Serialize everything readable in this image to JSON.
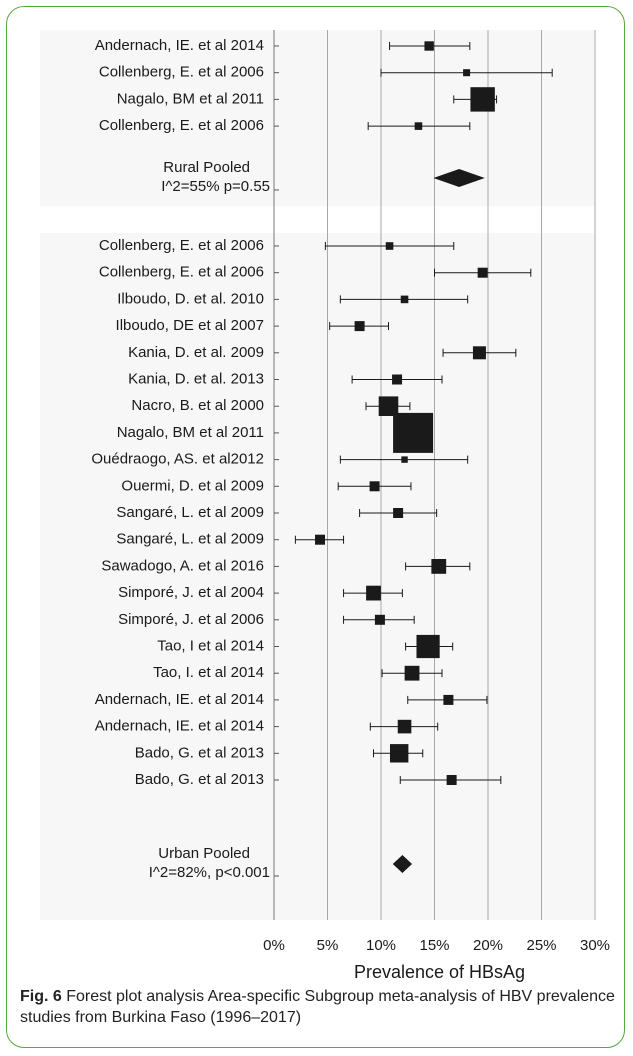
{
  "chart_data": {
    "type": "forest",
    "xlabel": "Prevalence of HBsAg",
    "xlim": [
      0,
      30
    ],
    "xticks": [
      "0%",
      "5%",
      "10%",
      "15%",
      "20%",
      "25%",
      "30%"
    ],
    "grid": "vertical",
    "colors": {
      "marker": "#1a1a1a",
      "panel": "#f7f7f7",
      "grid": "#a8a8a8",
      "frame": "#58a93b"
    },
    "groups": [
      {
        "studies": [
          {
            "label": "Andernach, IE. et al 2014",
            "estimate": 14.5,
            "lower": 10.8,
            "upper": 18.3,
            "weight": 0.45
          },
          {
            "label": "Collenberg, E. et al 2006",
            "estimate": 18.0,
            "lower": 10.0,
            "upper": 26.0,
            "weight": 0.25
          },
          {
            "label": "Nagalo, BM et al 2011",
            "estimate": 19.5,
            "lower": 16.8,
            "upper": 20.8,
            "weight": 1.7
          },
          {
            "label": "Collenberg, E. et al 2006",
            "estimate": 13.5,
            "lower": 8.8,
            "upper": 18.3,
            "weight": 0.3
          }
        ],
        "pooled": {
          "label": "Rural Pooled",
          "stats": "I^2=55% p=0.55",
          "estimate": 17.3,
          "lower": 14.9,
          "upper": 19.7
        }
      },
      {
        "studies": [
          {
            "label": "Collenberg, E. et al 2006",
            "estimate": 10.8,
            "lower": 4.8,
            "upper": 16.8,
            "weight": 0.3
          },
          {
            "label": "Collenberg, E. et al 2006",
            "estimate": 19.5,
            "lower": 15.0,
            "upper": 24.0,
            "weight": 0.5
          },
          {
            "label": "Ilboudo, D. et al. 2010",
            "estimate": 12.2,
            "lower": 6.2,
            "upper": 18.1,
            "weight": 0.3
          },
          {
            "label": "Ilboudo, DE et al 2007",
            "estimate": 8.0,
            "lower": 5.2,
            "upper": 10.7,
            "weight": 0.5
          },
          {
            "label": "Kania, D. et al. 2009",
            "estimate": 19.2,
            "lower": 15.8,
            "upper": 22.6,
            "weight": 0.75
          },
          {
            "label": "Kania, D. et al. 2013",
            "estimate": 11.5,
            "lower": 7.3,
            "upper": 15.7,
            "weight": 0.5
          },
          {
            "label": "Nacro, B. et al 2000",
            "estimate": 10.7,
            "lower": 8.6,
            "upper": 12.7,
            "weight": 1.3
          },
          {
            "label": "Nagalo, BM et al 2011",
            "estimate": 13.0,
            "lower": 11.8,
            "upper": 14.4,
            "weight": 3.0
          },
          {
            "label": "Ouédraogo, AS. et al2012",
            "estimate": 12.2,
            "lower": 6.2,
            "upper": 18.1,
            "weight": 0.2
          },
          {
            "label": "Ouermi, D. et al 2009",
            "estimate": 9.4,
            "lower": 6.0,
            "upper": 12.8,
            "weight": 0.5
          },
          {
            "label": "Sangaré, L. et al 2009",
            "estimate": 11.6,
            "lower": 8.0,
            "upper": 15.2,
            "weight": 0.5
          },
          {
            "label": "Sangaré, L. et al 2009",
            "estimate": 4.3,
            "lower": 2.0,
            "upper": 6.5,
            "weight": 0.5
          },
          {
            "label": "Sawadogo, A. et al 2016",
            "estimate": 15.4,
            "lower": 12.3,
            "upper": 18.3,
            "weight": 0.9
          },
          {
            "label": "Simporé, J. et al 2004",
            "estimate": 9.3,
            "lower": 6.5,
            "upper": 12.0,
            "weight": 0.9
          },
          {
            "label": "Simporé, J. et al 2006",
            "estimate": 9.9,
            "lower": 6.5,
            "upper": 13.1,
            "weight": 0.5
          },
          {
            "label": "Tao, I et al 2014",
            "estimate": 14.4,
            "lower": 12.3,
            "upper": 16.7,
            "weight": 1.6
          },
          {
            "label": "Tao, I. et al 2014",
            "estimate": 12.9,
            "lower": 10.1,
            "upper": 15.7,
            "weight": 0.9
          },
          {
            "label": "Andernach, IE. et al 2014",
            "estimate": 16.3,
            "lower": 12.5,
            "upper": 19.9,
            "weight": 0.5
          },
          {
            "label": "Andernach, IE. et al 2014",
            "estimate": 12.2,
            "lower": 9.0,
            "upper": 15.3,
            "weight": 0.8
          },
          {
            "label": "Bado, G. et al 2013",
            "estimate": 11.7,
            "lower": 9.3,
            "upper": 13.9,
            "weight": 1.2
          },
          {
            "label": "Bado, G. et al 2013",
            "estimate": 16.6,
            "lower": 11.8,
            "upper": 21.2,
            "weight": 0.5
          }
        ],
        "pooled": {
          "label": "Urban Pooled",
          "stats": "I^2=82%, p<0.001",
          "estimate": 12.0,
          "lower": 11.1,
          "upper": 12.9
        }
      }
    ]
  },
  "caption": {
    "fig_label": "Fig. 6",
    "text": " Forest plot analysis Area-specific Subgroup meta-analysis of HBV prevalence studies from Burkina Faso (1996–2017)"
  }
}
